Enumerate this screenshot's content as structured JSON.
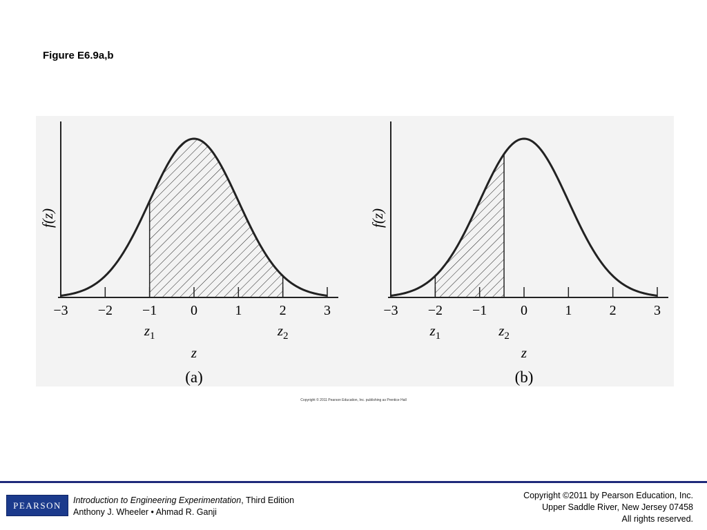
{
  "slide": {
    "title": "Figure E6.9a,b"
  },
  "credit_line": "Copyright © 2011 Pearson Education, Inc. publishing as Prentice Hall",
  "footer": {
    "logo_text": "PEARSON",
    "book_title": "Introduction to Engineering Experimentation",
    "book_edition": ", Third Edition",
    "authors": "Anthony J. Wheeler • Ahmad R. Ganji",
    "copyright_lines": [
      "Copyright ©2011 by Pearson Education, Inc.",
      "Upper Saddle River, New Jersey 07458",
      "All rights reserved."
    ]
  },
  "colors": {
    "footer_rule": "#1f2a7a",
    "logo_bg": "#1b3a8c",
    "figure_bg": "#f3f3f3"
  },
  "chart_data": [
    {
      "type": "area",
      "curve": "standard normal density",
      "xlim": [
        -3,
        3
      ],
      "x_ticks": [
        -3,
        -2,
        -1,
        0,
        1,
        2,
        3
      ],
      "x_tick_labels": [
        "−3",
        "−2",
        "−1",
        "0",
        "1",
        "2",
        "3"
      ],
      "ylabel": "f(z)",
      "xlabel": "z",
      "shaded_from": -1,
      "shaded_to": 2,
      "markers": [
        {
          "x": -1,
          "label": "z",
          "sub": "1"
        },
        {
          "x": 2,
          "label": "z",
          "sub": "2"
        }
      ],
      "caption": "(a)"
    },
    {
      "type": "area",
      "curve": "standard normal density",
      "xlim": [
        -3,
        3
      ],
      "x_ticks": [
        -3,
        -2,
        -1,
        0,
        1,
        2,
        3
      ],
      "x_tick_labels": [
        "−3",
        "−2",
        "−1",
        "0",
        "1",
        "2",
        "3"
      ],
      "ylabel": "f(z)",
      "xlabel": "z",
      "shaded_from": -2,
      "shaded_to": -0.45,
      "markers": [
        {
          "x": -2,
          "label": "z",
          "sub": "1"
        },
        {
          "x": -0.45,
          "label": "z",
          "sub": "2"
        }
      ],
      "caption": "(b)"
    }
  ]
}
